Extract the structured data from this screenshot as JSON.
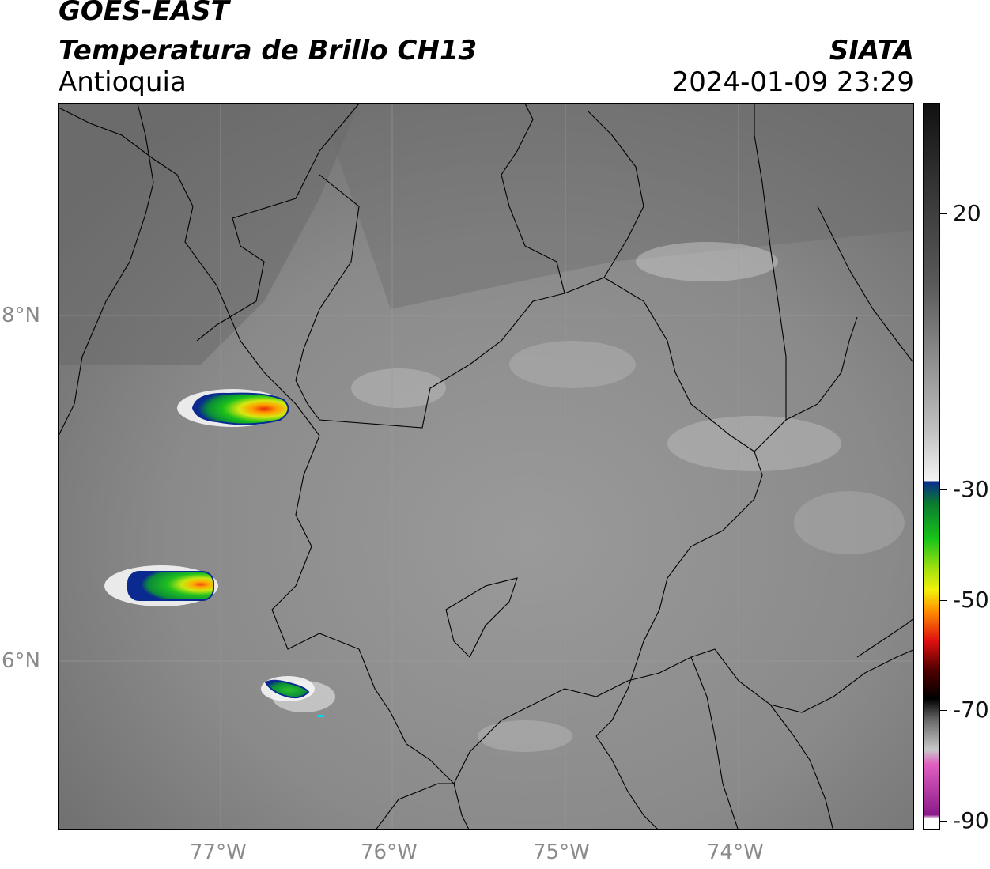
{
  "header": {
    "satellite": "GOES-EAST",
    "product": "Temperatura de Brillo CH13",
    "region": "Antioquia",
    "agency": "SIATA",
    "datetime": "2024-01-09 23:29"
  },
  "map": {
    "lat_ticks": [
      "8°N",
      "6°N"
    ],
    "lon_ticks": [
      "77°W",
      "76°W",
      "75°W",
      "74°W"
    ]
  },
  "colorbar": {
    "tick_labels": [
      "20",
      "-30",
      "-50",
      "-70",
      "-90"
    ],
    "colors": {
      "warm_dark": "#101010",
      "mid_gray": "#8c8c8c",
      "light": "#f4f4f4",
      "cyan": "#00d8f0",
      "blue": "#0a2a90",
      "green": "#19c419",
      "yellow": "#f2f20a",
      "orange": "#ff8c00",
      "red": "#e01010",
      "black": "#000000",
      "pink": "#e060c0",
      "purple": "#8a1a8a",
      "white": "#ffffff"
    }
  }
}
